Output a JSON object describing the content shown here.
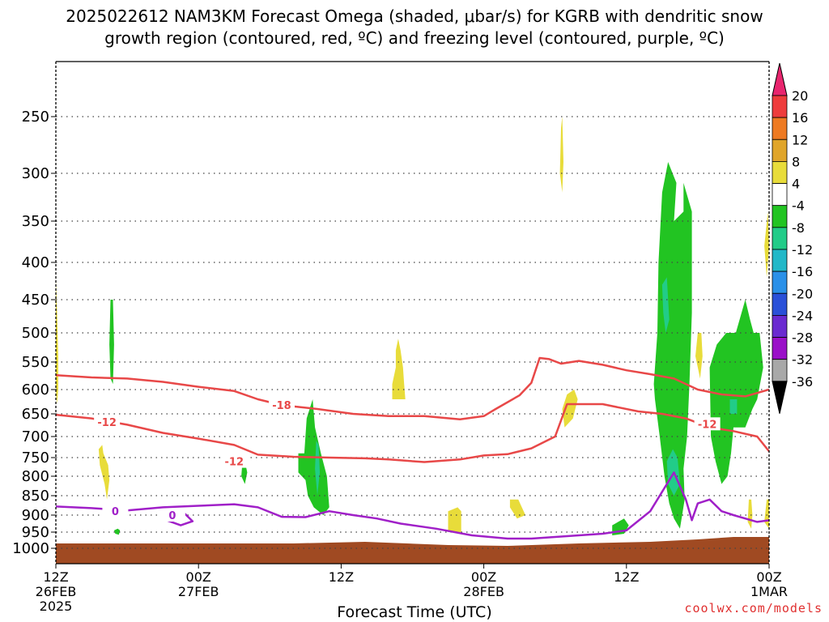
{
  "chart_data": {
    "type": "heatmap",
    "title_line1": "2025022612 NAM3KM Forecast Omega (shaded, μbar/s) for KGRB with dendritic snow",
    "title_line2": "growth region (contoured, red, ºC) and freezing level (contoured, purple, ºC)",
    "xlabel": "Forecast Time (UTC)",
    "ylabel": "",
    "credit": "coolwx.com/models",
    "x_ticks": [
      {
        "hour": 0,
        "line1": "12Z",
        "line2": "26FEB",
        "line3": "2025"
      },
      {
        "hour": 12,
        "line1": "00Z",
        "line2": "27FEB",
        "line3": ""
      },
      {
        "hour": 24,
        "line1": "12Z",
        "line2": "",
        "line3": ""
      },
      {
        "hour": 36,
        "line1": "00Z",
        "line2": "28FEB",
        "line3": ""
      },
      {
        "hour": 48,
        "line1": "12Z",
        "line2": "",
        "line3": ""
      },
      {
        "hour": 60,
        "line1": "00Z",
        "line2": "1MAR",
        "line3": ""
      }
    ],
    "x_range_hours": [
      0,
      60
    ],
    "y_ticks_hpa": [
      250,
      300,
      350,
      400,
      450,
      500,
      550,
      600,
      650,
      700,
      750,
      800,
      850,
      900,
      950,
      1000
    ],
    "y_range_hpa": [
      200,
      1050
    ],
    "grid": "dotted horizontal at pressure levels",
    "colorbar": {
      "labels": [
        "20",
        "16",
        "12",
        "8",
        "4",
        "-4",
        "-8",
        "-12",
        "-16",
        "-20",
        "-24",
        "-28",
        "-32",
        "-36"
      ],
      "colors": [
        "#e8256e",
        "#ee3c3c",
        "#ee7a22",
        "#e0a52a",
        "#e8dc3a",
        "#ffffff",
        "#22c422",
        "#22cc88",
        "#22b8c8",
        "#2a90e8",
        "#2a50d8",
        "#6a2ad0",
        "#9a10c8",
        "#a8a8a8",
        "#000000"
      ]
    },
    "omega_regions": [
      {
        "name": "ascent-hr12",
        "value": -8,
        "pts": [
          [
            50.3,
            590
          ],
          [
            50.4,
            620
          ],
          [
            50.8,
            700
          ],
          [
            51.2,
            800
          ],
          [
            51.6,
            870
          ],
          [
            52.0,
            910
          ],
          [
            52.5,
            940
          ],
          [
            52.9,
            860
          ],
          [
            52.8,
            780
          ],
          [
            53.1,
            700
          ],
          [
            53.3,
            590
          ],
          [
            53.5,
            470
          ],
          [
            53.5,
            340
          ],
          [
            52.8,
            310
          ],
          [
            52.8,
            340
          ],
          [
            52.0,
            350
          ],
          [
            52.2,
            310
          ],
          [
            51.5,
            290
          ],
          [
            51.0,
            320
          ],
          [
            50.7,
            400
          ],
          [
            50.6,
            500
          ]
        ]
      },
      {
        "name": "ascent-hr14",
        "value": -8,
        "pts": [
          [
            55.0,
            560
          ],
          [
            55.1,
            700
          ],
          [
            55.5,
            760
          ],
          [
            56.0,
            820
          ],
          [
            56.5,
            800
          ],
          [
            56.8,
            740
          ],
          [
            57.0,
            680
          ],
          [
            58.0,
            680
          ],
          [
            58.6,
            640
          ],
          [
            59.0,
            620
          ],
          [
            59.5,
            560
          ],
          [
            59.2,
            500
          ],
          [
            58.7,
            500
          ],
          [
            58.4,
            480
          ],
          [
            58.0,
            450
          ],
          [
            57.2,
            500
          ],
          [
            56.4,
            500
          ],
          [
            55.6,
            520
          ]
        ]
      },
      {
        "name": "ascent-hr11-west",
        "value": -8,
        "pts": [
          [
            46.8,
            930
          ],
          [
            46.8,
            960
          ],
          [
            47.8,
            955
          ],
          [
            48.2,
            930
          ],
          [
            47.8,
            910
          ]
        ]
      },
      {
        "name": "ascent-hr7",
        "value": -8,
        "pts": [
          [
            20.4,
            740
          ],
          [
            20.4,
            790
          ],
          [
            21.0,
            810
          ],
          [
            21.2,
            850
          ],
          [
            21.7,
            880
          ],
          [
            22.5,
            900
          ],
          [
            23.0,
            880
          ],
          [
            22.8,
            800
          ],
          [
            22.3,
            740
          ],
          [
            21.8,
            680
          ],
          [
            21.6,
            620
          ],
          [
            21.1,
            660
          ],
          [
            20.9,
            740
          ]
        ]
      },
      {
        "name": "ascent-hr5-strip",
        "value": -8,
        "pts": [
          [
            4.6,
            450
          ],
          [
            4.5,
            520
          ],
          [
            4.6,
            580
          ],
          [
            4.8,
            590
          ],
          [
            4.9,
            520
          ],
          [
            4.8,
            450
          ]
        ]
      },
      {
        "name": "ascent-hr10",
        "value": -8,
        "pts": [
          [
            15.7,
            760
          ],
          [
            15.6,
            800
          ],
          [
            15.9,
            820
          ],
          [
            16.1,
            790
          ],
          [
            15.9,
            760
          ]
        ]
      },
      {
        "name": "ascent-hr2",
        "value": -8,
        "pts": [
          [
            4.9,
            945
          ],
          [
            5.0,
            955
          ],
          [
            5.3,
            958
          ],
          [
            5.4,
            945
          ],
          [
            5.2,
            940
          ]
        ]
      },
      {
        "name": "core-hr12-upper",
        "value": -12,
        "pts": [
          [
            51.0,
            430
          ],
          [
            51.1,
            470
          ],
          [
            51.3,
            500
          ],
          [
            51.6,
            480
          ],
          [
            51.4,
            420
          ]
        ]
      },
      {
        "name": "core-hr12-lower",
        "value": -12,
        "pts": [
          [
            51.4,
            760
          ],
          [
            51.5,
            820
          ],
          [
            52.0,
            850
          ],
          [
            52.5,
            820
          ],
          [
            52.3,
            750
          ],
          [
            51.9,
            730
          ]
        ]
      },
      {
        "name": "core-hr14",
        "value": -12,
        "pts": [
          [
            56.7,
            620
          ],
          [
            56.7,
            650
          ],
          [
            57.3,
            650
          ],
          [
            57.3,
            620
          ]
        ]
      },
      {
        "name": "core-hr7",
        "value": -12,
        "pts": [
          [
            21.9,
            710
          ],
          [
            21.8,
            780
          ],
          [
            22.0,
            850
          ],
          [
            22.2,
            790
          ],
          [
            22.1,
            720
          ]
        ]
      },
      {
        "name": "descent-hr0",
        "value": 4,
        "pts": [
          [
            0.0,
            420
          ],
          [
            0.1,
            470
          ],
          [
            0.2,
            540
          ],
          [
            0.2,
            600
          ],
          [
            0.1,
            630
          ],
          [
            0.0,
            600
          ]
        ]
      },
      {
        "name": "descent-hr2",
        "value": 4,
        "pts": [
          [
            3.6,
            730
          ],
          [
            3.7,
            770
          ],
          [
            4.1,
            820
          ],
          [
            4.3,
            860
          ],
          [
            4.5,
            810
          ],
          [
            4.4,
            770
          ],
          [
            4.0,
            740
          ],
          [
            3.9,
            720
          ]
        ]
      },
      {
        "name": "descent-hr14",
        "value": 4,
        "pts": [
          [
            28.3,
            590
          ],
          [
            28.3,
            620
          ],
          [
            29.4,
            620
          ],
          [
            29.3,
            590
          ],
          [
            29.2,
            560
          ],
          [
            29.0,
            530
          ],
          [
            28.8,
            510
          ],
          [
            28.6,
            530
          ],
          [
            28.6,
            560
          ]
        ]
      },
      {
        "name": "descent-hr17",
        "value": 4,
        "pts": [
          [
            33.0,
            890
          ],
          [
            33.0,
            950
          ],
          [
            34.1,
            950
          ],
          [
            34.1,
            890
          ],
          [
            33.8,
            880
          ]
        ]
      },
      {
        "name": "descent-hr19",
        "value": 4,
        "pts": [
          [
            38.2,
            860
          ],
          [
            38.2,
            880
          ],
          [
            38.8,
            910
          ],
          [
            39.5,
            900
          ],
          [
            38.9,
            860
          ]
        ]
      },
      {
        "name": "descent-hr21-high",
        "value": 4,
        "pts": [
          [
            42.5,
            260
          ],
          [
            42.4,
            300
          ],
          [
            42.6,
            320
          ],
          [
            42.7,
            290
          ],
          [
            42.6,
            250
          ]
        ]
      },
      {
        "name": "descent-hr21",
        "value": 4,
        "pts": [
          [
            43.0,
            610
          ],
          [
            42.6,
            640
          ],
          [
            42.8,
            680
          ],
          [
            43.5,
            660
          ],
          [
            43.9,
            620
          ],
          [
            43.6,
            600
          ]
        ]
      },
      {
        "name": "descent-hr23",
        "value": 4,
        "pts": [
          [
            54.0,
            500
          ],
          [
            53.8,
            540
          ],
          [
            54.2,
            580
          ],
          [
            54.4,
            540
          ],
          [
            54.3,
            500
          ]
        ]
      },
      {
        "name": "descent-hr26-high",
        "value": 4,
        "pts": [
          [
            59.9,
            340
          ],
          [
            59.6,
            380
          ],
          [
            59.8,
            420
          ],
          [
            60.0,
            380
          ]
        ]
      },
      {
        "name": "descent-hr26-low",
        "value": 4,
        "pts": [
          [
            58.3,
            860
          ],
          [
            58.2,
            920
          ],
          [
            58.5,
            940
          ],
          [
            58.6,
            900
          ],
          [
            58.5,
            860
          ]
        ]
      },
      {
        "name": "descent-hr27-low",
        "value": 4,
        "pts": [
          [
            59.8,
            860
          ],
          [
            59.6,
            920
          ],
          [
            60.0,
            940
          ],
          [
            60.0,
            860
          ]
        ]
      }
    ],
    "isotherms": [
      {
        "name": "-18",
        "color": "#e84848",
        "label": "-18",
        "label_at": [
          19.0,
          632
        ],
        "pts": [
          [
            0,
            574
          ],
          [
            3,
            578
          ],
          [
            6,
            580
          ],
          [
            9,
            586
          ],
          [
            12,
            595
          ],
          [
            15,
            603
          ],
          [
            17,
            620
          ],
          [
            19,
            632
          ],
          [
            22,
            640
          ],
          [
            25,
            650
          ],
          [
            28,
            655
          ],
          [
            31,
            655
          ],
          [
            34,
            662
          ],
          [
            36,
            655
          ],
          [
            37,
            640
          ],
          [
            39,
            612
          ],
          [
            40,
            588
          ],
          [
            40.7,
            543
          ],
          [
            41.5,
            545
          ],
          [
            42.5,
            553
          ],
          [
            44,
            548
          ],
          [
            46,
            555
          ],
          [
            48,
            565
          ],
          [
            50,
            572
          ],
          [
            52,
            580
          ],
          [
            54,
            600
          ],
          [
            56,
            610
          ],
          [
            58,
            614
          ],
          [
            60,
            600
          ]
        ]
      },
      {
        "name": "-12",
        "color": "#e84848",
        "label": "-12",
        "label_at": [
          4.3,
          668
        ],
        "label2": "-12",
        "label2_at": [
          15.0,
          760
        ],
        "label3": "-12",
        "label3_at": [
          54.8,
          672
        ],
        "pts": [
          [
            0,
            652
          ],
          [
            3,
            660
          ],
          [
            6,
            674
          ],
          [
            9,
            692
          ],
          [
            12,
            705
          ],
          [
            15,
            720
          ],
          [
            17,
            743
          ],
          [
            20,
            748
          ],
          [
            23,
            750
          ],
          [
            26,
            752
          ],
          [
            28,
            755
          ],
          [
            31,
            762
          ],
          [
            34,
            755
          ],
          [
            36,
            745
          ],
          [
            38,
            742
          ],
          [
            40,
            728
          ],
          [
            42,
            700
          ],
          [
            43,
            630
          ],
          [
            46,
            630
          ],
          [
            49,
            645
          ],
          [
            51,
            650
          ],
          [
            53,
            660
          ],
          [
            55,
            680
          ],
          [
            57,
            688
          ],
          [
            59,
            700
          ],
          [
            60,
            735
          ]
        ]
      },
      {
        "name": "0",
        "color": "#a020c8",
        "label": "0",
        "label_at": [
          5.0,
          890
        ],
        "pts": [
          [
            0,
            878
          ],
          [
            3,
            882
          ],
          [
            6,
            888
          ],
          [
            9,
            880
          ],
          [
            12,
            876
          ],
          [
            15,
            872
          ],
          [
            17,
            880
          ],
          [
            19,
            905
          ],
          [
            21,
            906
          ],
          [
            23,
            890
          ],
          [
            25,
            900
          ],
          [
            27,
            910
          ],
          [
            29,
            925
          ],
          [
            32,
            940
          ],
          [
            35,
            960
          ],
          [
            38,
            970
          ],
          [
            40,
            970
          ],
          [
            42,
            965
          ],
          [
            44,
            960
          ],
          [
            46,
            955
          ],
          [
            48,
            945
          ],
          [
            50,
            890
          ],
          [
            52,
            790
          ],
          [
            53,
            860
          ],
          [
            53.5,
            915
          ],
          [
            54,
            870
          ],
          [
            55,
            860
          ],
          [
            56,
            890
          ],
          [
            57,
            900
          ],
          [
            59,
            920
          ],
          [
            60,
            915
          ]
        ]
      },
      {
        "name": "0-loop-hr10",
        "color": "#a020c8",
        "label": "0",
        "label_at": [
          9.8,
          900
        ],
        "pts": [
          [
            9.5,
            890
          ],
          [
            10.8,
            895
          ],
          [
            11.5,
            918
          ],
          [
            10.5,
            930
          ],
          [
            9.3,
            915
          ],
          [
            9.5,
            890
          ]
        ]
      }
    ],
    "terrain": {
      "color": "#a04a22",
      "top_hpa": 985
    }
  }
}
